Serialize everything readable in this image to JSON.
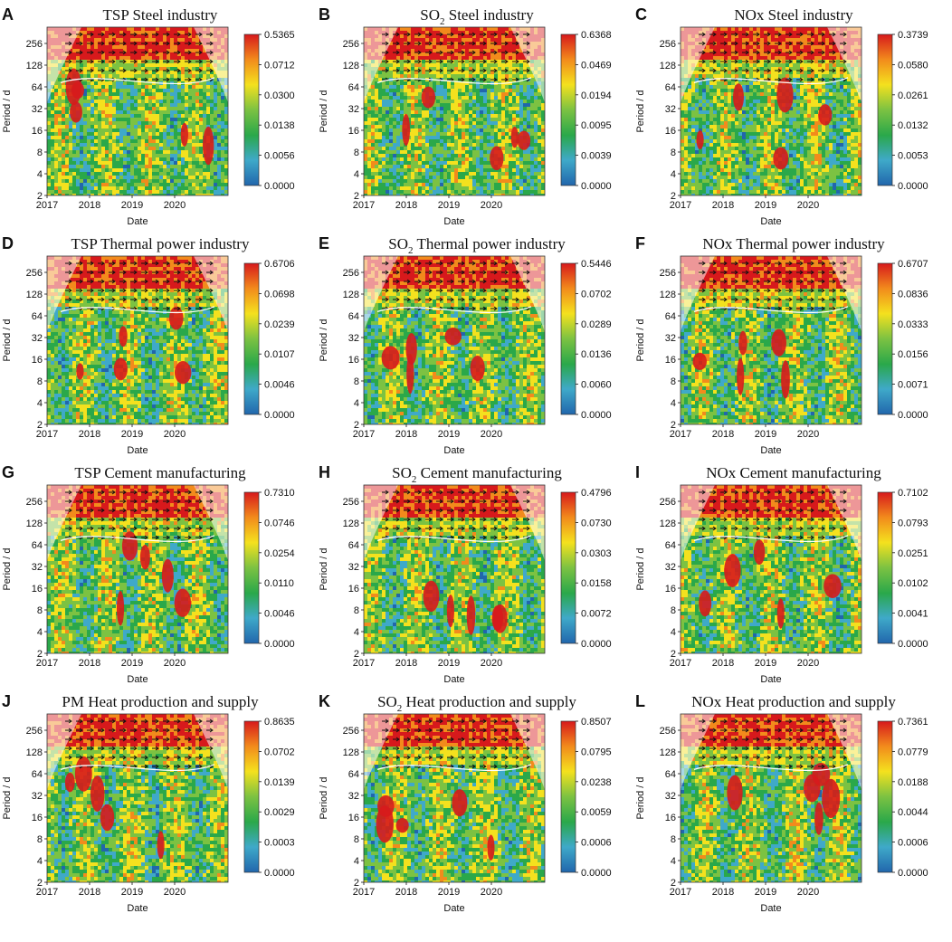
{
  "chart_data": [
    {
      "letter": "A",
      "title_main": "TSP",
      "title_sub": "",
      "title_rest": " Steel industry",
      "type": "heatmap",
      "ylabel": "Period / d",
      "xlabel": "Date",
      "yticks": [
        "256",
        "128",
        "64",
        "32",
        "16",
        "8",
        "4",
        "2"
      ],
      "xticks": [
        "2017",
        "2018",
        "2019",
        "2020"
      ],
      "colorbar": [
        "0.5365",
        "0.0712",
        "0.0300",
        "0.0138",
        "0.0056",
        "0.0000"
      ]
    },
    {
      "letter": "B",
      "title_main": "SO",
      "title_sub": "2",
      "title_rest": " Steel industry",
      "type": "heatmap",
      "ylabel": "Period / d",
      "xlabel": "Date",
      "yticks": [
        "256",
        "128",
        "64",
        "32",
        "16",
        "8",
        "4",
        "2"
      ],
      "xticks": [
        "2017",
        "2018",
        "2019",
        "2020"
      ],
      "colorbar": [
        "0.6368",
        "0.0469",
        "0.0194",
        "0.0095",
        "0.0039",
        "0.0000"
      ]
    },
    {
      "letter": "C",
      "title_main": "NOx",
      "title_sub": "",
      "title_rest": " Steel industry",
      "type": "heatmap",
      "ylabel": "Period / d",
      "xlabel": "Date",
      "yticks": [
        "256",
        "128",
        "64",
        "32",
        "16",
        "8",
        "4",
        "2"
      ],
      "xticks": [
        "2017",
        "2018",
        "2019",
        "2020"
      ],
      "colorbar": [
        "0.3739",
        "0.0580",
        "0.0261",
        "0.0132",
        "0.0053",
        "0.0000"
      ]
    },
    {
      "letter": "D",
      "title_main": "TSP",
      "title_sub": "",
      "title_rest": " Thermal power industry",
      "type": "heatmap",
      "ylabel": "Period / d",
      "xlabel": "Date",
      "yticks": [
        "256",
        "128",
        "64",
        "32",
        "16",
        "8",
        "4",
        "2"
      ],
      "xticks": [
        "2017",
        "2018",
        "2019",
        "2020"
      ],
      "colorbar": [
        "0.6706",
        "0.0698",
        "0.0239",
        "0.0107",
        "0.0046",
        "0.0000"
      ]
    },
    {
      "letter": "E",
      "title_main": "SO",
      "title_sub": "2",
      "title_rest": " Thermal power industry",
      "type": "heatmap",
      "ylabel": "Period / d",
      "xlabel": "Date",
      "yticks": [
        "256",
        "128",
        "64",
        "32",
        "16",
        "8",
        "4",
        "2"
      ],
      "xticks": [
        "2017",
        "2018",
        "2019",
        "2020"
      ],
      "colorbar": [
        "0.5446",
        "0.0702",
        "0.0289",
        "0.0136",
        "0.0060",
        "0.0000"
      ]
    },
    {
      "letter": "F",
      "title_main": "NOx",
      "title_sub": "",
      "title_rest": " Thermal power industry",
      "type": "heatmap",
      "ylabel": "Period / d",
      "xlabel": "Date",
      "yticks": [
        "256",
        "128",
        "64",
        "32",
        "16",
        "8",
        "4",
        "2"
      ],
      "xticks": [
        "2017",
        "2018",
        "2019",
        "2020"
      ],
      "colorbar": [
        "0.6707",
        "0.0836",
        "0.0333",
        "0.0156",
        "0.0071",
        "0.0000"
      ]
    },
    {
      "letter": "G",
      "title_main": "TSP",
      "title_sub": "",
      "title_rest": " Cement manufacturing",
      "type": "heatmap",
      "ylabel": "Period / d",
      "xlabel": "Date",
      "yticks": [
        "256",
        "128",
        "64",
        "32",
        "16",
        "8",
        "4",
        "2"
      ],
      "xticks": [
        "2017",
        "2018",
        "2019",
        "2020"
      ],
      "colorbar": [
        "0.7310",
        "0.0746",
        "0.0254",
        "0.0110",
        "0.0046",
        "0.0000"
      ]
    },
    {
      "letter": "H",
      "title_main": "SO",
      "title_sub": "2",
      "title_rest": " Cement manufacturing",
      "type": "heatmap",
      "ylabel": "Period / d",
      "xlabel": "Date",
      "yticks": [
        "256",
        "128",
        "64",
        "32",
        "16",
        "8",
        "4",
        "2"
      ],
      "xticks": [
        "2017",
        "2018",
        "2019",
        "2020"
      ],
      "colorbar": [
        "0.4796",
        "0.0730",
        "0.0303",
        "0.0158",
        "0.0072",
        "0.0000"
      ]
    },
    {
      "letter": "I",
      "title_main": "NOx",
      "title_sub": "",
      "title_rest": " Cement manufacturing",
      "type": "heatmap",
      "ylabel": "Period / d",
      "xlabel": "Date",
      "yticks": [
        "256",
        "128",
        "64",
        "32",
        "16",
        "8",
        "4",
        "2"
      ],
      "xticks": [
        "2017",
        "2018",
        "2019",
        "2020"
      ],
      "colorbar": [
        "0.7102",
        "0.0793",
        "0.0251",
        "0.0102",
        "0.0041",
        "0.0000"
      ]
    },
    {
      "letter": "J",
      "title_main": "PM",
      "title_sub": "",
      "title_rest": " Heat production and supply",
      "type": "heatmap",
      "ylabel": "Period / d",
      "xlabel": "Date",
      "yticks": [
        "256",
        "128",
        "64",
        "32",
        "16",
        "8",
        "4",
        "2"
      ],
      "xticks": [
        "2017",
        "2018",
        "2019",
        "2020"
      ],
      "colorbar": [
        "0.8635",
        "0.0702",
        "0.0139",
        "0.0029",
        "0.0003",
        "0.0000"
      ]
    },
    {
      "letter": "K",
      "title_main": "SO",
      "title_sub": "2",
      "title_rest": " Heat production and supply",
      "type": "heatmap",
      "ylabel": "Period / d",
      "xlabel": "Date",
      "yticks": [
        "256",
        "128",
        "64",
        "32",
        "16",
        "8",
        "4",
        "2"
      ],
      "xticks": [
        "2017",
        "2018",
        "2019",
        "2020"
      ],
      "colorbar": [
        "0.8507",
        "0.0795",
        "0.0238",
        "0.0059",
        "0.0006",
        "0.0000"
      ]
    },
    {
      "letter": "L",
      "title_main": "NOx",
      "title_sub": "",
      "title_rest": " Heat production and supply",
      "type": "heatmap",
      "ylabel": "Period / d",
      "xlabel": "Date",
      "yticks": [
        "256",
        "128",
        "64",
        "32",
        "16",
        "8",
        "4",
        "2"
      ],
      "xticks": [
        "2017",
        "2018",
        "2019",
        "2020"
      ],
      "colorbar": [
        "0.7361",
        "0.0779",
        "0.0188",
        "0.0044",
        "0.0006",
        "0.0000"
      ]
    }
  ],
  "colors": {
    "scale": [
      "#d7191c",
      "#f28b1c",
      "#f4e11e",
      "#7cc242",
      "#2aa84a",
      "#3fa9c9",
      "#2166ac"
    ]
  }
}
